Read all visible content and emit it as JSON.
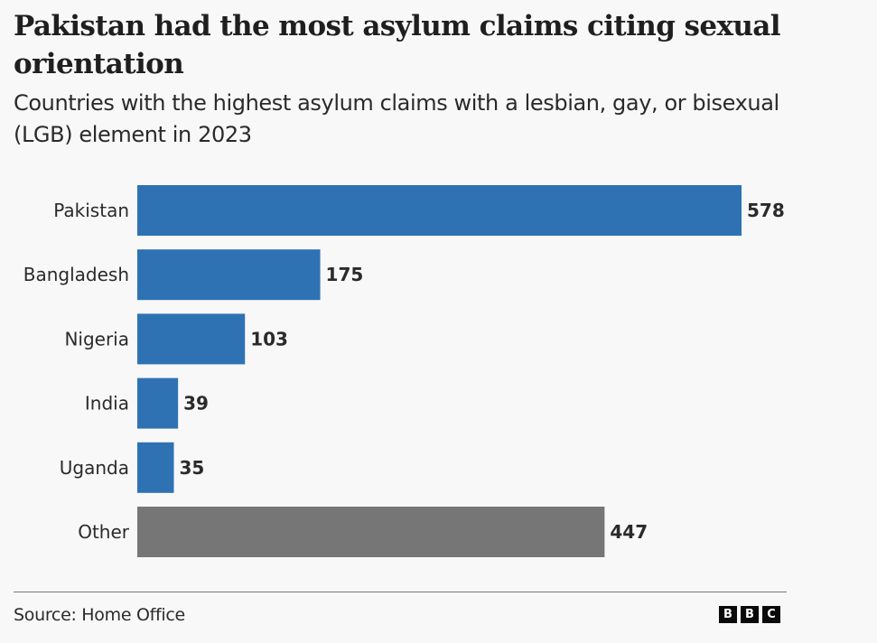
{
  "header": {
    "title": "Pakistan had the most asylum claims citing sexual orientation",
    "subtitle": "Countries with the highest asylum claims with a lesbian, gay, or bisexual (LGB) element in 2023"
  },
  "footer": {
    "source": "Source: Home Office",
    "logo_letters": [
      "B",
      "B",
      "C"
    ]
  },
  "colors": {
    "country_bar": "#2e72b4",
    "other_bar": "#767676",
    "background": "#f8f8f8"
  },
  "chart_data": {
    "type": "bar",
    "orientation": "horizontal",
    "title": "Pakistan had the most asylum claims citing sexual orientation",
    "subtitle": "Countries with the highest asylum claims with a lesbian, gay, or bisexual (LGB) element in 2023",
    "xlabel": "",
    "ylabel": "",
    "categories": [
      "Pakistan",
      "Bangladesh",
      "Nigeria",
      "India",
      "Uganda",
      "Other"
    ],
    "values": [
      578,
      175,
      103,
      39,
      35,
      447
    ],
    "bar_colors": [
      "#2e72b4",
      "#2e72b4",
      "#2e72b4",
      "#2e72b4",
      "#2e72b4",
      "#767676"
    ],
    "data_labels": [
      "578",
      "175",
      "103",
      "39",
      "35",
      "447"
    ],
    "xlim": [
      0,
      578
    ],
    "grid": false,
    "legend": "none",
    "source": "Source: Home Office"
  }
}
